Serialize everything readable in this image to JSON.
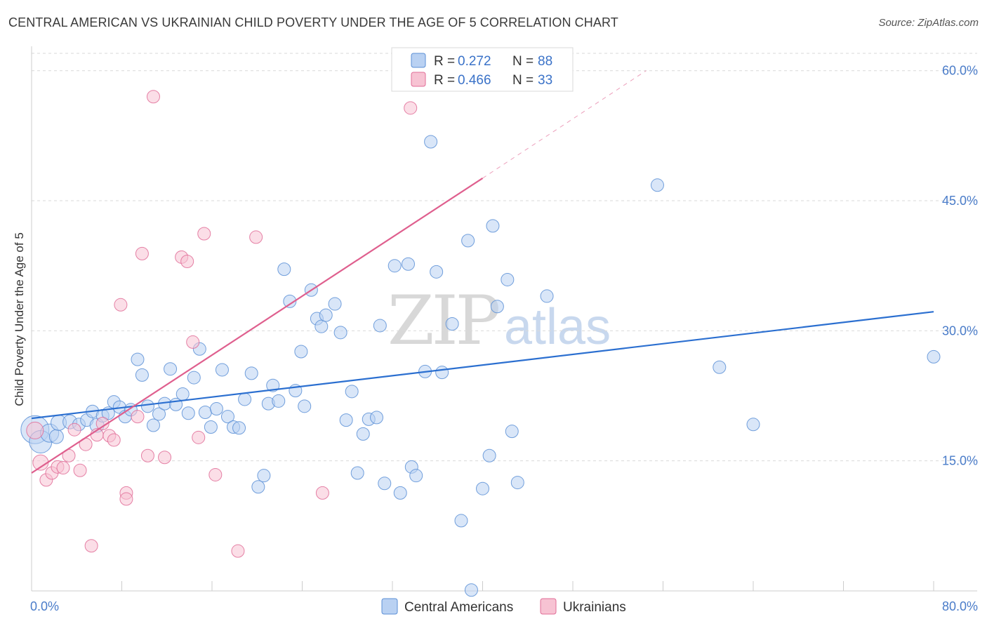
{
  "title": "CENTRAL AMERICAN VS UKRAINIAN CHILD POVERTY UNDER THE AGE OF 5 CORRELATION CHART",
  "source": "Source: ZipAtlas.com",
  "watermark": {
    "zip": "ZIP",
    "atlas": "atlas"
  },
  "colors": {
    "blue": "#5b8fd6",
    "blue_fill": "#b9d1f2",
    "blue_line": "#2b6fd0",
    "pink": "#e16c97",
    "pink_fill": "#f7c3d3",
    "pink_line": "#df5f8e",
    "grid": "#d9d9d9",
    "axis_label": "#4a7cc9"
  },
  "legend": {
    "rows": [
      {
        "r_label": "R = ",
        "r_value": "0.272",
        "n_label": "N = ",
        "n_value": "88",
        "series": "blue"
      },
      {
        "r_label": "R = ",
        "r_value": "0.466",
        "n_label": "N = ",
        "n_value": "33",
        "series": "pink"
      }
    ]
  },
  "chart_data": {
    "type": "scatter",
    "title": "CENTRAL AMERICAN VS UKRAINIAN CHILD POVERTY UNDER THE AGE OF 5 CORRELATION CHART",
    "xlabel": "",
    "ylabel": "Child Poverty Under the Age of 5",
    "xlim": [
      0,
      80
    ],
    "ylim": [
      0,
      62
    ],
    "x_tick_labels": [
      "0.0%",
      "80.0%"
    ],
    "y_ticks": [
      15,
      30,
      45,
      60
    ],
    "y_tick_labels": [
      "15.0%",
      "30.0%",
      "45.0%",
      "60.0%"
    ],
    "grid": true,
    "legend_position": "top-center",
    "series": [
      {
        "name": "Central Americans",
        "color": "blue",
        "trend": {
          "x": [
            0,
            80
          ],
          "y": [
            19.9,
            32.2
          ]
        },
        "points": [
          [
            0.3,
            18.6,
            20
          ],
          [
            0.8,
            17.2,
            16
          ],
          [
            1.6,
            18.2,
            13
          ],
          [
            2.2,
            17.8,
            10
          ],
          [
            2.4,
            19.4,
            11
          ],
          [
            3.4,
            19.5,
            10
          ],
          [
            4.2,
            19.2,
            9
          ],
          [
            4.9,
            19.7,
            9
          ],
          [
            5.4,
            20.7,
            9
          ],
          [
            5.8,
            19.1,
            10
          ],
          [
            6.3,
            20.2,
            9
          ],
          [
            6.8,
            20.5,
            9
          ],
          [
            7.3,
            21.8,
            9
          ],
          [
            7.8,
            21.2,
            9
          ],
          [
            8.3,
            20.1,
            9
          ],
          [
            8.8,
            20.9,
            9
          ],
          [
            9.4,
            26.7,
            9
          ],
          [
            9.8,
            24.9,
            9
          ],
          [
            10.3,
            21.3,
            9
          ],
          [
            10.8,
            19.1,
            9
          ],
          [
            11.3,
            20.4,
            9
          ],
          [
            11.8,
            21.6,
            9
          ],
          [
            12.3,
            25.6,
            9
          ],
          [
            12.8,
            21.5,
            9
          ],
          [
            13.4,
            22.7,
            9
          ],
          [
            13.9,
            20.5,
            9
          ],
          [
            14.4,
            24.6,
            9
          ],
          [
            14.9,
            27.9,
            9
          ],
          [
            15.4,
            20.6,
            9
          ],
          [
            15.9,
            18.9,
            9
          ],
          [
            16.4,
            21.0,
            9
          ],
          [
            16.9,
            25.5,
            9
          ],
          [
            17.4,
            20.1,
            9
          ],
          [
            17.9,
            18.9,
            9
          ],
          [
            18.4,
            18.8,
            9
          ],
          [
            18.9,
            22.1,
            9
          ],
          [
            19.5,
            25.1,
            9
          ],
          [
            20.1,
            12.0,
            9
          ],
          [
            20.6,
            13.3,
            9
          ],
          [
            21.0,
            21.6,
            9
          ],
          [
            21.4,
            23.7,
            9
          ],
          [
            21.9,
            21.9,
            9
          ],
          [
            22.4,
            37.1,
            9
          ],
          [
            22.9,
            33.4,
            9
          ],
          [
            23.4,
            23.1,
            9
          ],
          [
            23.9,
            27.6,
            9
          ],
          [
            24.2,
            21.3,
            9
          ],
          [
            24.8,
            34.7,
            9
          ],
          [
            25.3,
            31.4,
            9
          ],
          [
            25.7,
            30.5,
            9
          ],
          [
            26.1,
            31.8,
            9
          ],
          [
            26.9,
            33.1,
            9
          ],
          [
            27.4,
            29.8,
            9
          ],
          [
            27.9,
            19.7,
            9
          ],
          [
            28.4,
            23.0,
            9
          ],
          [
            28.9,
            13.6,
            9
          ],
          [
            29.4,
            18.1,
            9
          ],
          [
            29.9,
            19.8,
            9
          ],
          [
            30.6,
            20.0,
            9
          ],
          [
            30.9,
            30.6,
            9
          ],
          [
            31.3,
            12.4,
            9
          ],
          [
            32.2,
            37.5,
            9
          ],
          [
            32.7,
            11.3,
            9
          ],
          [
            33.4,
            37.7,
            9
          ],
          [
            33.7,
            14.3,
            9
          ],
          [
            34.1,
            13.3,
            9
          ],
          [
            34.9,
            25.3,
            9
          ],
          [
            35.4,
            51.8,
            9
          ],
          [
            35.9,
            36.8,
            9
          ],
          [
            36.4,
            25.2,
            9
          ],
          [
            37.3,
            30.8,
            9
          ],
          [
            38.1,
            8.1,
            9
          ],
          [
            38.7,
            40.4,
            9
          ],
          [
            39.0,
            0.1,
            9
          ],
          [
            40.0,
            11.8,
            9
          ],
          [
            40.6,
            15.6,
            9
          ],
          [
            40.9,
            42.1,
            9
          ],
          [
            41.3,
            32.8,
            9
          ],
          [
            42.2,
            35.9,
            9
          ],
          [
            42.6,
            18.4,
            9
          ],
          [
            43.1,
            12.5,
            9
          ],
          [
            45.7,
            34.0,
            9
          ],
          [
            55.5,
            46.8,
            9
          ],
          [
            61.0,
            25.8,
            9
          ],
          [
            64.0,
            19.2,
            9
          ],
          [
            80.0,
            27.0,
            9
          ]
        ]
      },
      {
        "name": "Ukrainians",
        "color": "pink",
        "trend": {
          "x": [
            0,
            40
          ],
          "y": [
            13.6,
            47.6
          ]
        },
        "trend_dashed": {
          "x": [
            40,
            54.5
          ],
          "y": [
            47.6,
            60.0
          ]
        },
        "points": [
          [
            0.3,
            18.5,
            12
          ],
          [
            0.8,
            14.8,
            11
          ],
          [
            1.3,
            12.8,
            9
          ],
          [
            1.8,
            13.6,
            9
          ],
          [
            2.3,
            14.3,
            9
          ],
          [
            2.8,
            14.2,
            9
          ],
          [
            3.3,
            15.6,
            9
          ],
          [
            3.8,
            18.6,
            9
          ],
          [
            4.3,
            13.9,
            9
          ],
          [
            4.8,
            16.9,
            9
          ],
          [
            5.3,
            5.2,
            9
          ],
          [
            5.8,
            18.0,
            9
          ],
          [
            6.3,
            19.3,
            9
          ],
          [
            6.9,
            17.9,
            9
          ],
          [
            7.3,
            17.4,
            9
          ],
          [
            7.9,
            33.0,
            9
          ],
          [
            8.4,
            11.3,
            9
          ],
          [
            8.4,
            10.6,
            9
          ],
          [
            9.4,
            20.1,
            9
          ],
          [
            9.8,
            38.9,
            9
          ],
          [
            10.3,
            15.6,
            9
          ],
          [
            10.8,
            57.0,
            9
          ],
          [
            11.8,
            15.4,
            9
          ],
          [
            13.3,
            38.5,
            9
          ],
          [
            13.8,
            38.0,
            9
          ],
          [
            14.3,
            28.7,
            9
          ],
          [
            14.8,
            17.7,
            9
          ],
          [
            15.3,
            41.2,
            9
          ],
          [
            16.3,
            13.4,
            9
          ],
          [
            18.3,
            4.6,
            9
          ],
          [
            19.9,
            40.8,
            9
          ],
          [
            25.8,
            11.3,
            9
          ],
          [
            33.6,
            55.7,
            9
          ]
        ]
      }
    ]
  },
  "bottom_legend": [
    {
      "label": "Central Americans",
      "series": "blue"
    },
    {
      "label": "Ukrainians",
      "series": "pink"
    }
  ]
}
